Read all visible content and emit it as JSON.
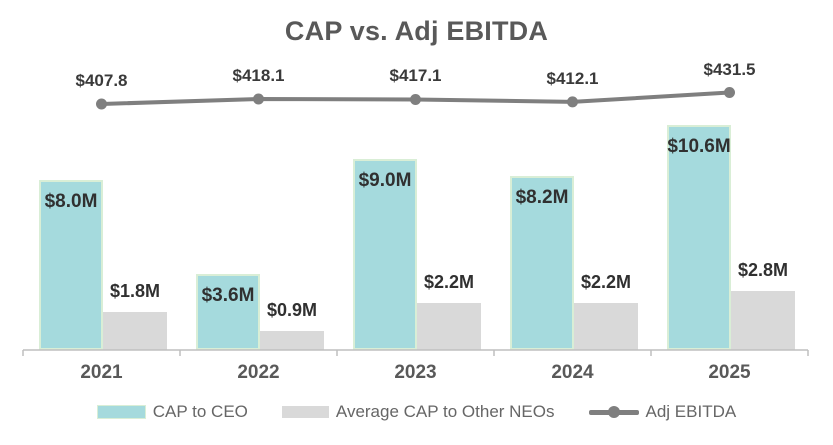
{
  "title": "CAP vs. Adj EBITDA",
  "chart_data": {
    "type": "bar",
    "subtype": "grouped-bars-with-line-overlay",
    "title": "CAP vs. Adj EBITDA",
    "categories": [
      "2021",
      "2022",
      "2023",
      "2024",
      "2025"
    ],
    "series": [
      {
        "name": "CAP to CEO",
        "type": "bar",
        "values": [
          8.0,
          3.6,
          9.0,
          8.2,
          10.6
        ],
        "labels": [
          "$8.0M",
          "$3.6M",
          "$9.0M",
          "$8.2M",
          "$10.6M"
        ],
        "unit": "$M",
        "color": "#a5dadd"
      },
      {
        "name": "Average CAP to Other NEOs",
        "type": "bar",
        "values": [
          1.8,
          0.9,
          2.2,
          2.2,
          2.8
        ],
        "labels": [
          "$1.8M",
          "$0.9M",
          "$2.2M",
          "$2.2M",
          "$2.8M"
        ],
        "unit": "$M",
        "color": "#d9d9d9"
      },
      {
        "name": "Adj EBITDA",
        "type": "line",
        "values": [
          407.8,
          418.1,
          417.1,
          412.1,
          431.5
        ],
        "labels": [
          "$407.8",
          "$418.1",
          "$417.1",
          "$412.1",
          "$431.5"
        ],
        "color": "#7f7f7f"
      }
    ],
    "xlabel": "",
    "ylabel": "",
    "grid": false,
    "axes_visible": "x-only",
    "legend_position": "bottom",
    "data_labels_visible": true
  },
  "legend": {
    "cap_to_ceo": "CAP to CEO",
    "avg_cap_other_neos": "Average CAP to Other NEOs",
    "adj_ebitda": "Adj EBITDA"
  },
  "colors": {
    "ceo_bar_fill": "#a5dadd",
    "ceo_bar_border": "#d9eed6",
    "neo_bar_fill": "#d9d9d9",
    "line": "#7f7f7f",
    "title_text": "#595959",
    "value_label_text": "#303030",
    "axis_line": "#bfbfbf"
  }
}
